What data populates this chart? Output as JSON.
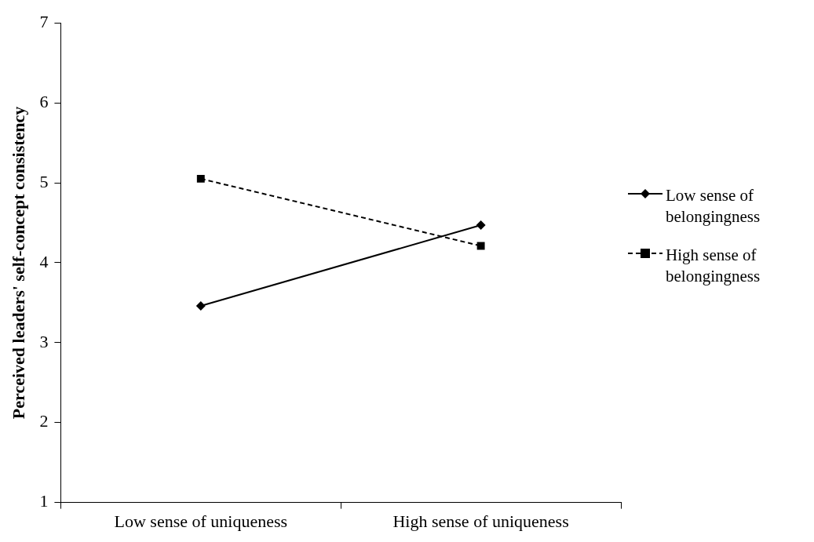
{
  "chart_data": {
    "type": "line",
    "ylabel": "Perceived leaders' self-concept consistency",
    "categories": [
      "Low sense of uniqueness",
      "High sense of uniqueness"
    ],
    "series": [
      {
        "name": "Low sense of belongingness",
        "color": "#000000",
        "values": [
          3.46,
          4.47
        ],
        "marker": "diamond",
        "line_style": "solid"
      },
      {
        "name": "High sense of belongingness",
        "color": "#000000",
        "values": [
          5.05,
          4.21
        ],
        "marker": "square",
        "line_style": "dashed"
      }
    ],
    "ylim": [
      1,
      7
    ],
    "yticks": [
      1,
      2,
      3,
      4,
      5,
      6,
      7
    ],
    "grid": false,
    "legend": "right"
  }
}
